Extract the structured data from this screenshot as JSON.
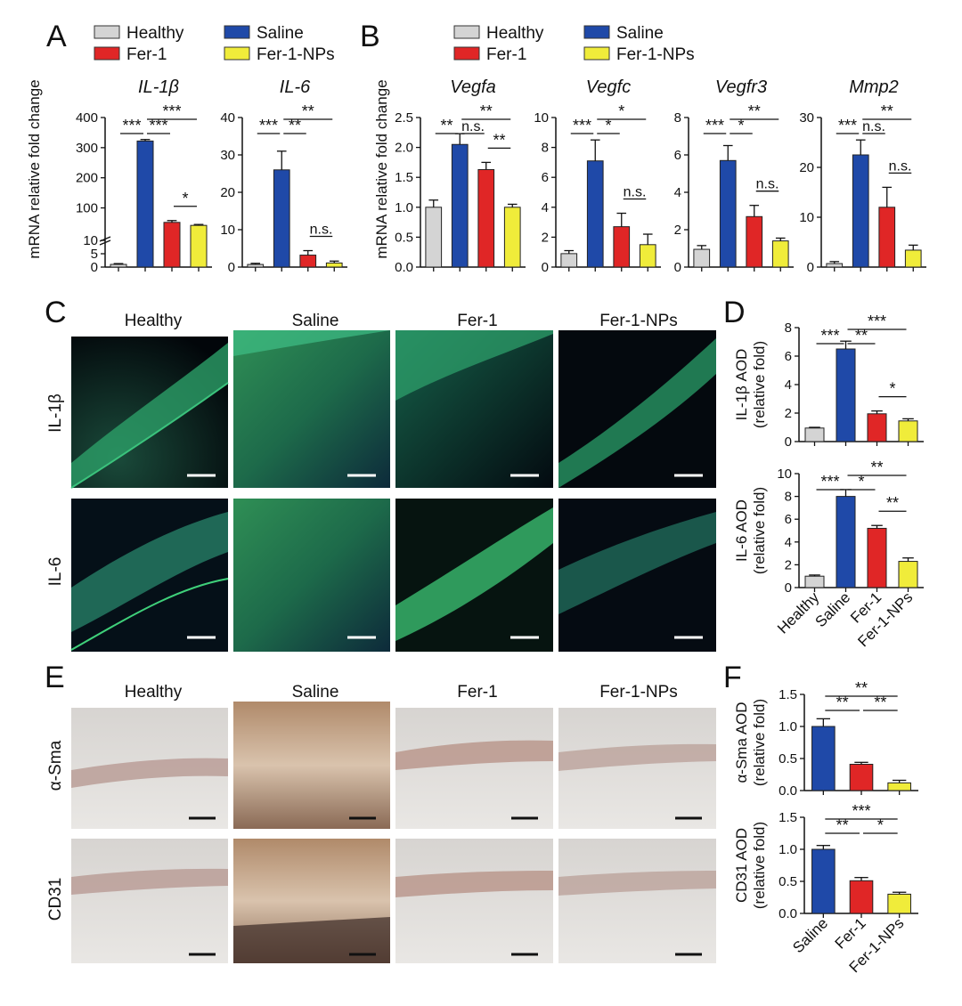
{
  "colors": {
    "Healthy": "#d4d4d4",
    "Saline": "#1f49a8",
    "Fer-1": "#e02626",
    "Fer-1-NPs": "#f0ec3a"
  },
  "panel_letters": [
    "A",
    "B",
    "C",
    "D",
    "E",
    "F"
  ],
  "legend_A": [
    "Healthy",
    "Saline",
    "Fer-1",
    "Fer-1-NPs"
  ],
  "legend_B": [
    "Healthy",
    "Saline",
    "Fer-1",
    "Fer-1-NPs"
  ],
  "row_labels": {
    "C": [
      "IL-1β",
      "IL-6"
    ],
    "E": [
      "α-Sma",
      "CD31"
    ]
  },
  "column_labels": {
    "C": [
      "Healthy",
      "Saline",
      "Fer-1",
      "Fer-1-NPs"
    ],
    "E": [
      "Healthy",
      "Saline",
      "Fer-1",
      "Fer-1-NPs"
    ]
  },
  "chart_data": [
    {
      "id": "IL1b",
      "type": "bar",
      "panel": "A",
      "title": "IL-1β",
      "ylabel": "mRNA relative fold change",
      "axis": "broken",
      "ylim": [
        0,
        400
      ],
      "yticks": [
        0,
        5,
        10,
        100,
        200,
        300,
        400
      ],
      "categories": [
        "Healthy",
        "Saline",
        "Fer-1",
        "Fer-1-NPs"
      ],
      "values": [
        1,
        322,
        52,
        42
      ],
      "errors": [
        0.3,
        5,
        6,
        3
      ],
      "sig": [
        {
          "a": 0,
          "b": 1,
          "label": "***"
        },
        {
          "a": 1,
          "b": 2,
          "label": "***"
        },
        {
          "a": 1,
          "b": 3,
          "label": "***"
        },
        {
          "a": 2,
          "b": 3,
          "label": "*"
        }
      ]
    },
    {
      "id": "IL6",
      "type": "bar",
      "panel": "A",
      "title": "IL-6",
      "ylim": [
        0,
        40
      ],
      "yticks": [
        0,
        10,
        20,
        30,
        40
      ],
      "categories": [
        "Healthy",
        "Saline",
        "Fer-1",
        "Fer-1-NPs"
      ],
      "values": [
        0.7,
        26,
        3.2,
        1.1
      ],
      "errors": [
        0.3,
        5,
        1.2,
        0.5
      ],
      "sig": [
        {
          "a": 0,
          "b": 1,
          "label": "***"
        },
        {
          "a": 1,
          "b": 2,
          "label": "**"
        },
        {
          "a": 1,
          "b": 3,
          "label": "**"
        },
        {
          "a": 2,
          "b": 3,
          "label": "n.s."
        }
      ]
    },
    {
      "id": "Vegfa",
      "type": "bar",
      "panel": "B",
      "title": "Vegfa",
      "ylabel": "mRNA relative fold change",
      "ylim": [
        0,
        2.5
      ],
      "yticks": [
        0.0,
        0.5,
        1.0,
        1.5,
        2.0,
        2.5
      ],
      "categories": [
        "Healthy",
        "Saline",
        "Fer-1",
        "Fer-1-NPs"
      ],
      "values": [
        1.0,
        2.05,
        1.63,
        1.0
      ],
      "errors": [
        0.12,
        0.18,
        0.12,
        0.05
      ],
      "sig": [
        {
          "a": 0,
          "b": 1,
          "label": "**"
        },
        {
          "a": 1,
          "b": 2,
          "label": "n.s."
        },
        {
          "a": 1,
          "b": 3,
          "label": "**"
        },
        {
          "a": 2,
          "b": 3,
          "label": "**"
        }
      ]
    },
    {
      "id": "Vegfc",
      "type": "bar",
      "panel": "B",
      "title": "Vegfc",
      "ylim": [
        0,
        10
      ],
      "yticks": [
        0,
        2,
        4,
        6,
        8,
        10
      ],
      "categories": [
        "Healthy",
        "Saline",
        "Fer-1",
        "Fer-1-NPs"
      ],
      "values": [
        0.9,
        7.1,
        2.7,
        1.5
      ],
      "errors": [
        0.2,
        1.4,
        0.9,
        0.7
      ],
      "sig": [
        {
          "a": 0,
          "b": 1,
          "label": "***"
        },
        {
          "a": 1,
          "b": 2,
          "label": "*"
        },
        {
          "a": 1,
          "b": 3,
          "label": "*"
        },
        {
          "a": 2,
          "b": 3,
          "label": "n.s."
        }
      ]
    },
    {
      "id": "Vegfr3",
      "type": "bar",
      "panel": "B",
      "title": "Vegfr3",
      "ylim": [
        0,
        8
      ],
      "yticks": [
        0,
        2,
        4,
        6,
        8
      ],
      "categories": [
        "Healthy",
        "Saline",
        "Fer-1",
        "Fer-1-NPs"
      ],
      "values": [
        0.95,
        5.7,
        2.7,
        1.4
      ],
      "errors": [
        0.2,
        0.8,
        0.6,
        0.15
      ],
      "sig": [
        {
          "a": 0,
          "b": 1,
          "label": "***"
        },
        {
          "a": 1,
          "b": 2,
          "label": "*"
        },
        {
          "a": 1,
          "b": 3,
          "label": "**"
        },
        {
          "a": 2,
          "b": 3,
          "label": "n.s."
        }
      ]
    },
    {
      "id": "Mmp2",
      "type": "bar",
      "panel": "B",
      "title": "Mmp2",
      "ylim": [
        0,
        30
      ],
      "yticks": [
        0,
        10,
        20,
        30
      ],
      "categories": [
        "Healthy",
        "Saline",
        "Fer-1",
        "Fer-1-NPs"
      ],
      "values": [
        0.7,
        22.5,
        12,
        3.4
      ],
      "errors": [
        0.4,
        3,
        4,
        1
      ],
      "sig": [
        {
          "a": 0,
          "b": 1,
          "label": "***"
        },
        {
          "a": 1,
          "b": 2,
          "label": "n.s."
        },
        {
          "a": 1,
          "b": 3,
          "label": "**"
        },
        {
          "a": 2,
          "b": 3,
          "label": "n.s."
        }
      ]
    },
    {
      "id": "D_IL1b",
      "type": "bar",
      "panel": "D",
      "ylabel": [
        "IL-1β AOD",
        "(relative fold)"
      ],
      "ylim": [
        0,
        8
      ],
      "yticks": [
        0,
        2,
        4,
        6,
        8
      ],
      "categories": [
        "Healthy",
        "Saline",
        "Fer-1",
        "Fer-1-NPs"
      ],
      "values": [
        0.95,
        6.5,
        1.95,
        1.45
      ],
      "errors": [
        0.05,
        0.55,
        0.2,
        0.15
      ],
      "sig": [
        {
          "a": 0,
          "b": 1,
          "label": "***"
        },
        {
          "a": 1,
          "b": 2,
          "label": "**"
        },
        {
          "a": 1,
          "b": 3,
          "label": "***"
        },
        {
          "a": 2,
          "b": 3,
          "label": "*"
        }
      ]
    },
    {
      "id": "D_IL6",
      "type": "bar",
      "panel": "D",
      "ylabel": [
        "IL-6 AOD",
        "(relative fold)"
      ],
      "ylim": [
        0,
        10
      ],
      "yticks": [
        0,
        2,
        4,
        6,
        8,
        10
      ],
      "categories": [
        "Healthy",
        "Saline",
        "Fer-1",
        "Fer-1-NPs"
      ],
      "values": [
        1.0,
        8.0,
        5.2,
        2.3
      ],
      "errors": [
        0.1,
        0.6,
        0.25,
        0.3
      ],
      "sig": [
        {
          "a": 0,
          "b": 1,
          "label": "***"
        },
        {
          "a": 1,
          "b": 2,
          "label": "*"
        },
        {
          "a": 1,
          "b": 3,
          "label": "**"
        },
        {
          "a": 2,
          "b": 3,
          "label": "**"
        }
      ]
    },
    {
      "id": "F_aSma",
      "type": "bar",
      "panel": "F",
      "ylabel": [
        "α-Sma AOD",
        "(relative fold)"
      ],
      "ylim": [
        0,
        1.5
      ],
      "yticks": [
        0.0,
        0.5,
        1.0,
        1.5
      ],
      "categories": [
        "Saline",
        "Fer-1",
        "Fer-1-NPs"
      ],
      "values": [
        1.0,
        0.41,
        0.12
      ],
      "errors": [
        0.12,
        0.03,
        0.04
      ],
      "sig": [
        {
          "a": 0,
          "b": 1,
          "label": "**"
        },
        {
          "a": 0,
          "b": 2,
          "label": "**"
        },
        {
          "a": 1,
          "b": 2,
          "label": "**"
        }
      ]
    },
    {
      "id": "F_CD31",
      "type": "bar",
      "panel": "F",
      "ylabel": [
        "CD31 AOD",
        "(relative fold)"
      ],
      "ylim": [
        0,
        1.5
      ],
      "yticks": [
        0.0,
        0.5,
        1.0,
        1.5
      ],
      "categories": [
        "Saline",
        "Fer-1",
        "Fer-1-NPs"
      ],
      "values": [
        1.0,
        0.51,
        0.3
      ],
      "errors": [
        0.06,
        0.05,
        0.03
      ],
      "sig": [
        {
          "a": 0,
          "b": 1,
          "label": "**"
        },
        {
          "a": 0,
          "b": 2,
          "label": "***"
        },
        {
          "a": 1,
          "b": 2,
          "label": "*"
        }
      ]
    }
  ]
}
